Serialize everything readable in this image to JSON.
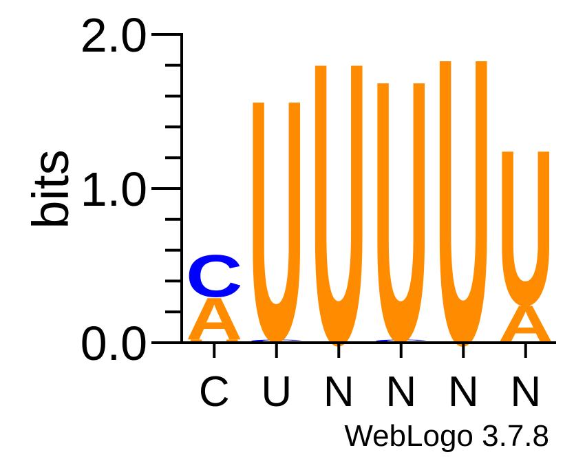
{
  "chart_data": {
    "type": "sequence-logo",
    "ylabel": "bits",
    "ylim": [
      0,
      2.0
    ],
    "y_ticks": [
      "0.0",
      "1.0",
      "2.0"
    ],
    "categories": [
      "C",
      "U",
      "N",
      "N",
      "N",
      "N"
    ],
    "colors": {
      "A": "#ff8c00",
      "C": "#0000ff",
      "G": "#ffa500",
      "U": "#ff8c00"
    },
    "positions": [
      {
        "label": "C",
        "stack": [
          {
            "letter": "U",
            "bits": 0.02
          },
          {
            "letter": "A",
            "bits": 0.28
          },
          {
            "letter": "C",
            "bits": 0.28
          }
        ]
      },
      {
        "label": "U",
        "stack": [
          {
            "letter": "C",
            "bits": 0.02
          },
          {
            "letter": "U",
            "bits": 1.6
          }
        ]
      },
      {
        "label": "N",
        "stack": [
          {
            "letter": "U",
            "bits": 1.87
          }
        ]
      },
      {
        "label": "N",
        "stack": [
          {
            "letter": "C",
            "bits": 0.02
          },
          {
            "letter": "U",
            "bits": 1.73
          }
        ]
      },
      {
        "label": "N",
        "stack": [
          {
            "letter": "U",
            "bits": 1.9
          }
        ]
      },
      {
        "label": "N",
        "stack": [
          {
            "letter": "A",
            "bits": 0.25
          },
          {
            "letter": "U",
            "bits": 1.03
          }
        ]
      }
    ],
    "footer": "WebLogo 3.7.8"
  }
}
